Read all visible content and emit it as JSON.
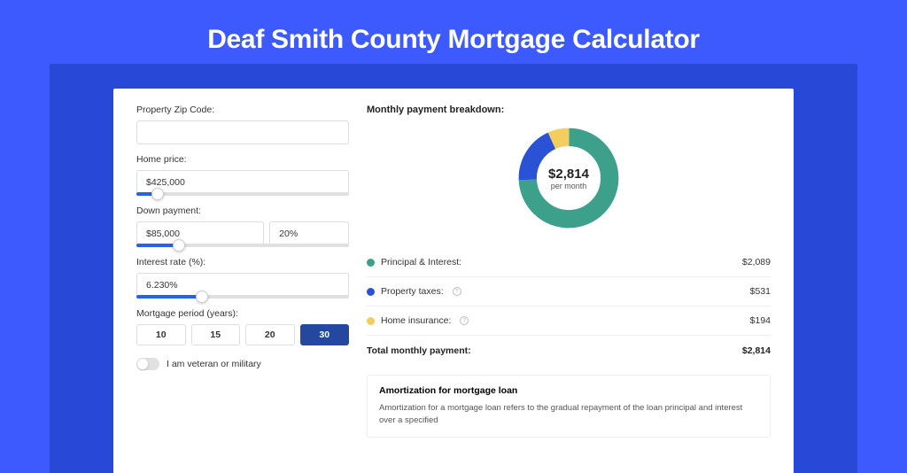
{
  "title": "Deaf Smith County Mortgage Calculator",
  "colors": {
    "page_bg": "#3d5afe",
    "inner_band": "#2848d8",
    "accent_blue": "#2563eb",
    "period_active": "#23489d"
  },
  "form": {
    "zip": {
      "label": "Property Zip Code:",
      "value": ""
    },
    "home_price": {
      "label": "Home price:",
      "value": "$425,000",
      "slider_pct": 10
    },
    "down_payment": {
      "label": "Down payment:",
      "value": "$85,000",
      "pct": "20%",
      "slider_pct": 20
    },
    "interest_rate": {
      "label": "Interest rate (%):",
      "value": "6.230%",
      "slider_pct": 31
    },
    "mortgage_period": {
      "label": "Mortgage period (years):",
      "options": [
        "10",
        "15",
        "20",
        "30"
      ],
      "active_index": 3
    },
    "veteran": {
      "label": "I am veteran or military",
      "checked": false
    }
  },
  "breakdown": {
    "title": "Monthly payment breakdown:",
    "center_amount": "$2,814",
    "center_sub": "per month",
    "donut": {
      "segments": [
        {
          "key": "pi",
          "color": "#3da08a",
          "value": 2089
        },
        {
          "key": "tax",
          "color": "#2a52d5",
          "value": 531
        },
        {
          "key": "ins",
          "color": "#f3ce5e",
          "value": 194
        }
      ],
      "thickness": 16
    },
    "legend": [
      {
        "label": "Principal & Interest:",
        "color": "#3da08a",
        "value": "$2,089",
        "info": false
      },
      {
        "label": "Property taxes:",
        "color": "#2a52d5",
        "value": "$531",
        "info": true
      },
      {
        "label": "Home insurance:",
        "color": "#f3ce5e",
        "value": "$194",
        "info": true
      }
    ],
    "total": {
      "label": "Total monthly payment:",
      "value": "$2,814"
    }
  },
  "amortization": {
    "title": "Amortization for mortgage loan",
    "body": "Amortization for a mortgage loan refers to the gradual repayment of the loan principal and interest over a specified"
  }
}
